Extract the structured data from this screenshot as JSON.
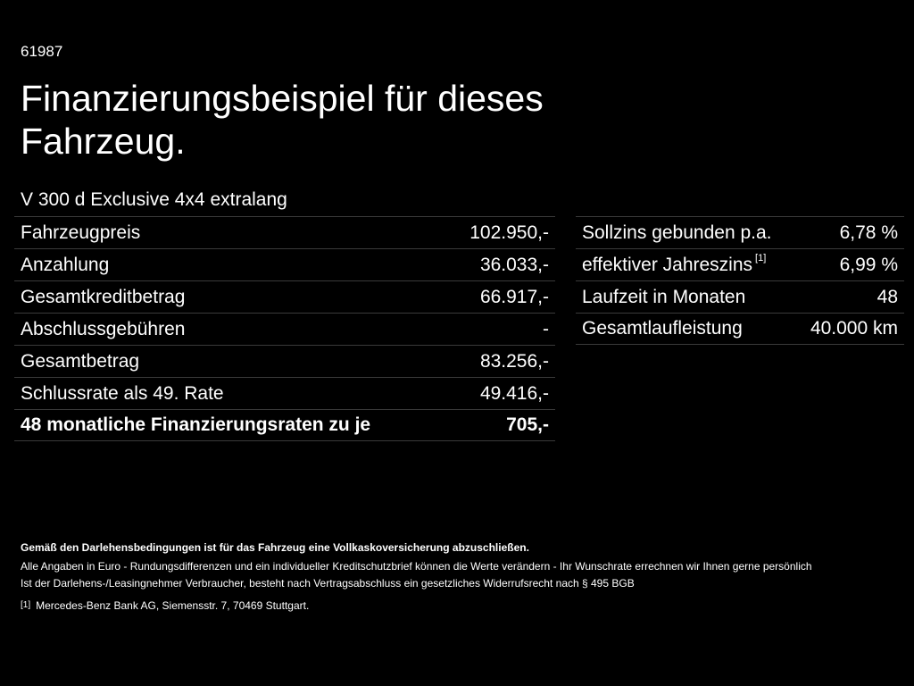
{
  "header": {
    "ref_id": "61987",
    "title": "Finanzierungsbeispiel für dieses Fahrzeug.",
    "model": "V 300 d Exclusive 4x4 extralang"
  },
  "left_table": [
    {
      "label": "Fahrzeugpreis",
      "value": "102.950,-"
    },
    {
      "label": "Anzahlung",
      "value": "36.033,-"
    },
    {
      "label": "Gesamtkreditbetrag",
      "value": "66.917,-"
    },
    {
      "label": "Abschlussgebühren",
      "value": "-"
    },
    {
      "label": "Gesamtbetrag",
      "value": "83.256,-"
    },
    {
      "label": "Schlussrate als 49. Rate",
      "value": "49.416,-"
    },
    {
      "label": "48 monatliche Finanzierungsraten zu je",
      "value": "705,-"
    }
  ],
  "right_table": [
    {
      "label": "Sollzins gebunden p.a.",
      "value": "6,78 %"
    },
    {
      "label": "effektiver Jahreszins",
      "footnote": "[1]",
      "value": "6,99 %"
    },
    {
      "label": "Laufzeit in Monaten",
      "value": "48"
    },
    {
      "label": "Gesamtlaufleistung",
      "value": "40.000 km"
    }
  ],
  "notes": {
    "insurance": "Gemäß den Darlehensbedingungen ist für das Fahrzeug eine Vollkaskoversicherung abzuschließen.",
    "disclaimer": "Alle Angaben in Euro - Rundungsdifferenzen und ein individueller Kreditschutzbrief können die Werte verändern - Ihr Wunschrate errechnen wir Ihnen gerne persönlich",
    "withdrawal": "Ist der Darlehens-/Leasingnehmer Verbraucher, besteht nach Vertragsabschluss ein gesetzliches Widerrufsrecht nach § 495 BGB"
  },
  "footnote": {
    "mark": "[1]",
    "text": "Mercedes-Benz Bank AG, Siemensstr. 7, 70469 Stuttgart."
  }
}
